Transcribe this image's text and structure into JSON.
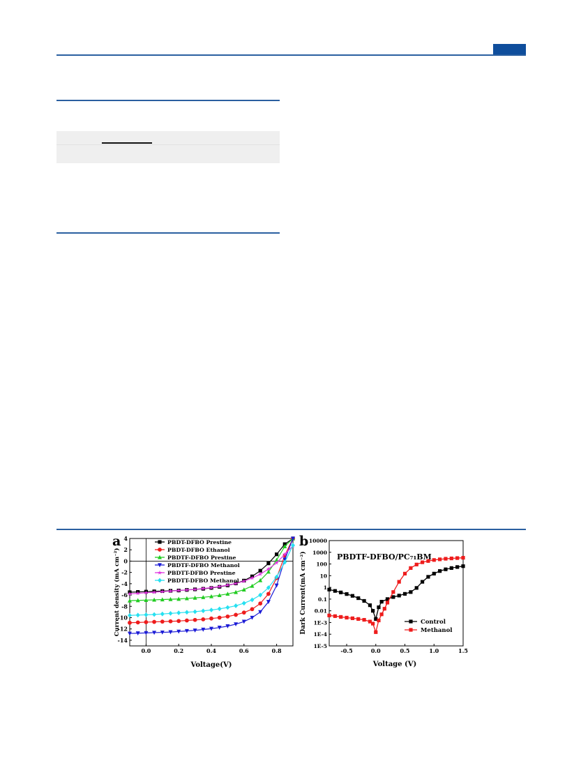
{
  "colors": {
    "rule": "#2a5fa0",
    "tab": "#0f4e9c"
  },
  "chart_data": [
    {
      "panel_label": "a",
      "type": "line",
      "xlabel": "Voltage(V)",
      "ylabel": "Current density (mA cm⁻²)",
      "xlim": [
        -0.1,
        0.9
      ],
      "ylim": [
        -15,
        4
      ],
      "xticks": [
        "0.0",
        "0.2",
        "0.4",
        "0.6",
        "0.8"
      ],
      "yticks": [
        "4",
        "2",
        "0",
        "-2",
        "-4",
        "-6",
        "-8",
        "-10",
        "-12",
        "-14"
      ],
      "legend_position": "top-left",
      "x": [
        -0.1,
        -0.05,
        0.0,
        0.05,
        0.1,
        0.15,
        0.2,
        0.25,
        0.3,
        0.35,
        0.4,
        0.45,
        0.5,
        0.55,
        0.6,
        0.65,
        0.7,
        0.75,
        0.8,
        0.85,
        0.9
      ],
      "series": [
        {
          "name": "PBDT-DFBO Prestine",
          "color": "#000000",
          "marker": "square",
          "values": [
            -5.5,
            -5.45,
            -5.4,
            -5.35,
            -5.3,
            -5.25,
            -5.2,
            -5.1,
            -5.0,
            -4.9,
            -4.75,
            -4.55,
            -4.3,
            -3.95,
            -3.45,
            -2.7,
            -1.7,
            -0.4,
            1.2,
            3.0,
            4.0
          ]
        },
        {
          "name": "PBDT-DFBO Ethanol",
          "color": "#ee1c1c",
          "marker": "circle",
          "values": [
            -10.9,
            -10.85,
            -10.8,
            -10.75,
            -10.7,
            -10.65,
            -10.6,
            -10.5,
            -10.4,
            -10.3,
            -10.15,
            -10.0,
            -9.8,
            -9.5,
            -9.1,
            -8.5,
            -7.5,
            -5.8,
            -3.0,
            1.0,
            4.0
          ]
        },
        {
          "name": "PBDTF-DFBO Prestine",
          "color": "#22cc22",
          "marker": "triangle-up",
          "values": [
            -7.0,
            -6.95,
            -6.9,
            -6.85,
            -6.8,
            -6.75,
            -6.7,
            -6.6,
            -6.5,
            -6.4,
            -6.25,
            -6.05,
            -5.8,
            -5.5,
            -5.05,
            -4.4,
            -3.4,
            -1.9,
            0.2,
            2.6,
            4.0
          ]
        },
        {
          "name": "PBDTF-DFBO Methanol",
          "color": "#1b1bd6",
          "marker": "triangle-down",
          "values": [
            -12.8,
            -12.75,
            -12.7,
            -12.65,
            -12.6,
            -12.55,
            -12.45,
            -12.35,
            -12.25,
            -12.1,
            -11.95,
            -11.75,
            -11.5,
            -11.15,
            -10.7,
            -10.0,
            -9.0,
            -7.2,
            -4.3,
            0.3,
            4.0
          ]
        },
        {
          "name": "PBDTT-DFBO Prestine",
          "color": "#e033e0",
          "marker": "star",
          "values": [
            -5.8,
            -5.7,
            -5.6,
            -5.5,
            -5.4,
            -5.3,
            -5.2,
            -5.1,
            -5.0,
            -4.85,
            -4.7,
            -4.5,
            -4.25,
            -3.95,
            -3.55,
            -3.0,
            -2.3,
            -1.4,
            -0.3,
            1.2,
            2.7
          ]
        },
        {
          "name": "PBDTT-DFBO Methanol",
          "color": "#27e0f0",
          "marker": "diamond",
          "values": [
            -9.6,
            -9.55,
            -9.5,
            -9.45,
            -9.35,
            -9.25,
            -9.15,
            -9.05,
            -8.95,
            -8.8,
            -8.65,
            -8.45,
            -8.2,
            -7.9,
            -7.45,
            -6.85,
            -6.0,
            -4.7,
            -2.8,
            -0.2,
            2.8
          ]
        }
      ]
    },
    {
      "panel_label": "b",
      "type": "line",
      "annotation": "PBDTF-DFBO/PC₇₁BM",
      "xlabel": "Voltage (V)",
      "ylabel": "Dark Current(mA cm⁻²)",
      "y_scale": "log",
      "xlim": [
        -0.8,
        1.5
      ],
      "ylim_exp": [
        -5,
        4
      ],
      "xticks": [
        "-0.5",
        "0.0",
        "0.5",
        "1.0",
        "1.5"
      ],
      "yticks": [
        "10000",
        "1000",
        "100",
        "10",
        "1",
        "0.1",
        "0.01",
        "1E-3",
        "1E-4",
        "1E-5"
      ],
      "legend_position": "bottom-right",
      "series": [
        {
          "name": "Control",
          "color": "#000000",
          "marker": "square",
          "x": [
            -0.8,
            -0.7,
            -0.6,
            -0.5,
            -0.4,
            -0.3,
            -0.2,
            -0.1,
            -0.05,
            0.0,
            0.05,
            0.1,
            0.2,
            0.3,
            0.4,
            0.5,
            0.6,
            0.7,
            0.8,
            0.9,
            1.0,
            1.1,
            1.2,
            1.3,
            1.4,
            1.5
          ],
          "values": [
            0.65,
            0.5,
            0.37,
            0.27,
            0.19,
            0.12,
            0.07,
            0.03,
            0.01,
            0.002,
            0.02,
            0.06,
            0.1,
            0.15,
            0.2,
            0.28,
            0.4,
            0.9,
            3,
            8,
            15,
            25,
            35,
            45,
            55,
            65
          ]
        },
        {
          "name": "Methanol",
          "color": "#ee1c1c",
          "marker": "square",
          "x": [
            -0.8,
            -0.7,
            -0.6,
            -0.5,
            -0.4,
            -0.3,
            -0.2,
            -0.1,
            -0.05,
            0.0,
            0.05,
            0.1,
            0.15,
            0.2,
            0.3,
            0.4,
            0.5,
            0.6,
            0.7,
            0.8,
            0.9,
            1.0,
            1.1,
            1.2,
            1.3,
            1.4,
            1.5
          ],
          "values": [
            0.004,
            0.0035,
            0.003,
            0.0026,
            0.0023,
            0.002,
            0.0017,
            0.0012,
            0.0008,
            0.00015,
            0.0015,
            0.005,
            0.015,
            0.05,
            0.4,
            3,
            15,
            45,
            90,
            140,
            180,
            220,
            250,
            280,
            300,
            320,
            340
          ]
        }
      ]
    }
  ]
}
